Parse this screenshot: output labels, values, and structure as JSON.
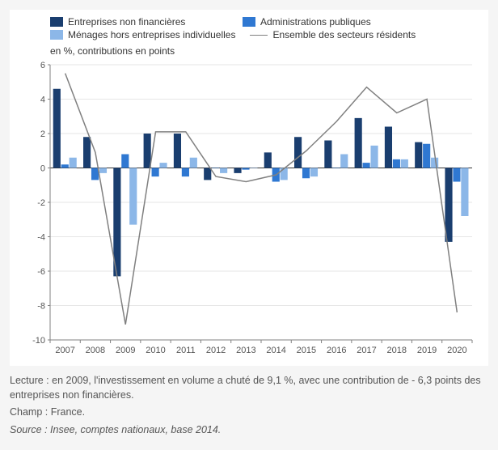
{
  "legend": {
    "series1": "Entreprises non financières",
    "series2": "Administrations publiques",
    "series3": "Ménages hors entreprises individuelles",
    "series4": "Ensemble des secteurs résidents"
  },
  "y_axis_label": "en %, contributions en points",
  "chart": {
    "type": "bar+line",
    "background_color": "#ffffff",
    "grid_color": "#e6e6e6",
    "axis_color": "#808080",
    "tick_fontsize": 11,
    "label_fontsize": 12,
    "ylim": [
      -10,
      6
    ],
    "ytick_step": 2,
    "yticks": [
      -10,
      -8,
      -6,
      -4,
      -2,
      0,
      2,
      4,
      6
    ],
    "categories": [
      "2007",
      "2008",
      "2009",
      "2010",
      "2011",
      "2012",
      "2013",
      "2014",
      "2015",
      "2016",
      "2017",
      "2018",
      "2019",
      "2020"
    ],
    "bar_group_width": 0.8,
    "series": [
      {
        "key": "s1",
        "name": "Entreprises non financières",
        "color": "#1a3e6f",
        "type": "bar",
        "values": [
          4.6,
          1.8,
          -6.3,
          2.0,
          2.0,
          -0.7,
          -0.3,
          0.9,
          1.8,
          1.6,
          2.9,
          2.4,
          1.5,
          -4.3
        ]
      },
      {
        "key": "s2",
        "name": "Administrations publiques",
        "color": "#2f78d2",
        "type": "bar",
        "values": [
          0.2,
          -0.7,
          0.8,
          -0.5,
          -0.5,
          0.0,
          -0.1,
          -0.8,
          -0.6,
          0.0,
          0.3,
          0.5,
          1.4,
          -0.8
        ]
      },
      {
        "key": "s3",
        "name": "Ménages hors entreprises individuelles",
        "color": "#8cb7e8",
        "type": "bar",
        "values": [
          0.6,
          -0.3,
          -3.3,
          0.3,
          0.6,
          -0.3,
          0.0,
          -0.7,
          -0.5,
          0.8,
          1.3,
          0.5,
          0.6,
          -2.8
        ]
      },
      {
        "key": "s4",
        "name": "Ensemble des secteurs résidents",
        "color": "#808080",
        "type": "line",
        "values": [
          5.5,
          0.9,
          -9.1,
          2.1,
          2.1,
          -0.5,
          -0.8,
          -0.4,
          1.0,
          2.7,
          4.7,
          3.2,
          4.0,
          -8.4
        ]
      }
    ]
  },
  "footnotes": {
    "lecture": "Lecture : en 2009, l'investissement en volume a chuté de 9,1 %, avec une contribution de - 6,3 points des entreprises non financières.",
    "champ": "Champ : France.",
    "source": "Source : Insee, comptes nationaux, base 2014."
  }
}
